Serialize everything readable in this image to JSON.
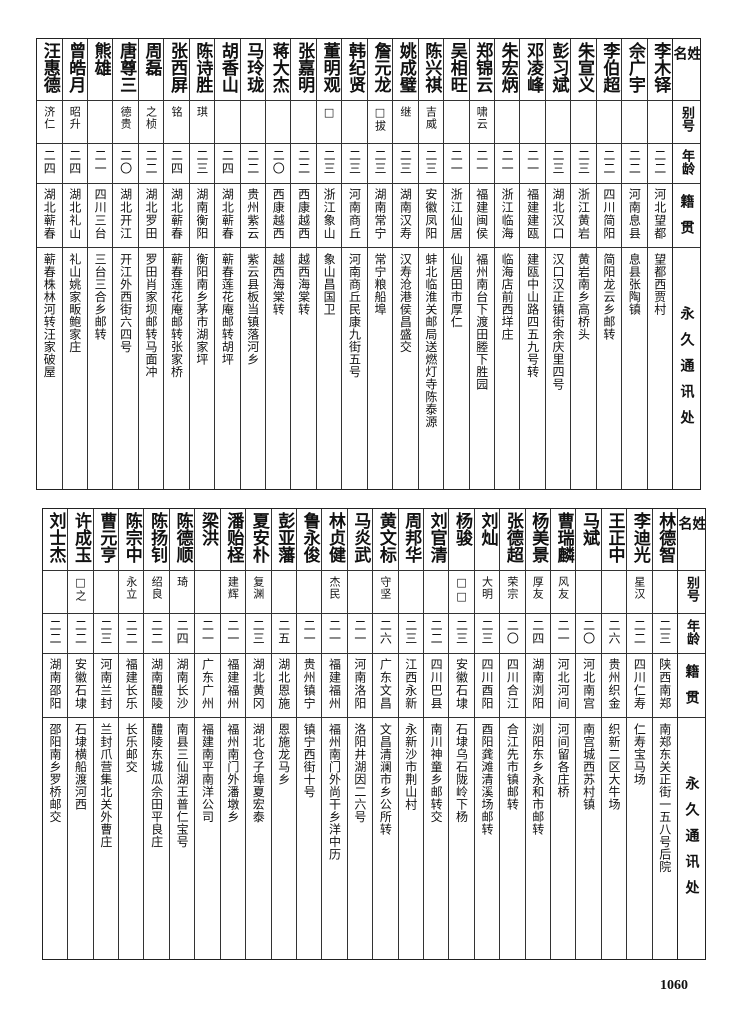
{
  "headers": {
    "name": "姓名",
    "alias": "别号",
    "age": "年龄",
    "origin": "籍贯",
    "address": "永久通讯处"
  },
  "tables": [
    {
      "rows": [
        {
          "name": "李木铎",
          "alias": "",
          "age": "二二",
          "origin": "河北望都",
          "address": "望都西贾村"
        },
        {
          "name": "佘广宇",
          "alias": "",
          "age": "二二",
          "origin": "河南息县",
          "address": "息县张陶镇"
        },
        {
          "name": "李伯超",
          "alias": "",
          "age": "二二",
          "origin": "四川简阳",
          "address": "简阳龙云乡邮转"
        },
        {
          "name": "朱宣义",
          "alias": "",
          "age": "二三",
          "origin": "浙江黄岩",
          "address": "黄岩南乡高桥头"
        },
        {
          "name": "彭习斌",
          "alias": "",
          "age": "二三",
          "origin": "湖北汉口",
          "address": "汉口汉正镇街余庆里四号"
        },
        {
          "name": "邓凌峰",
          "alias": "",
          "age": "二一",
          "origin": "福建建瓯",
          "address": "建瓯中山路四五九号转"
        },
        {
          "name": "朱宏炳",
          "alias": "",
          "age": "二一",
          "origin": "浙江临海",
          "address": "临海店前西垟庄"
        },
        {
          "name": "郑锦云",
          "alias": "啸云",
          "age": "二一",
          "origin": "福建闽侯",
          "address": "福州南台下渡田塍下胜园"
        },
        {
          "name": "吴相旺",
          "alias": "",
          "age": "二一",
          "origin": "浙江仙居",
          "address": "仙居田市厚仁"
        },
        {
          "name": "陈兴祺",
          "alias": "吉威",
          "age": "二三",
          "origin": "安徽凤阳",
          "address": "蚌北临淮关邮局送燃灯寺陈泰源"
        },
        {
          "name": "姚成璧",
          "alias": "继",
          "age": "二三",
          "origin": "湖南汉寿",
          "address": "汉寿沧港侯昌盛交"
        },
        {
          "name": "詹元龙",
          "alias": "□拔",
          "age": "二三",
          "origin": "湖南常宁",
          "address": "常宁粮船埠"
        },
        {
          "name": "韩纪贤",
          "alias": "",
          "age": "二三",
          "origin": "河南商丘",
          "address": "河南商丘民康九街五号"
        },
        {
          "name": "董明观",
          "alias": "□",
          "age": "二三",
          "origin": "浙江象山",
          "address": "象山昌国卫"
        },
        {
          "name": "张嘉明",
          "alias": "",
          "age": "二二",
          "origin": "西康越西",
          "address": "越西海棠转"
        },
        {
          "name": "蒋大杰",
          "alias": "",
          "age": "二〇",
          "origin": "西康越西",
          "address": "越西海棠转"
        },
        {
          "name": "马玲珑",
          "alias": "",
          "age": "二二",
          "origin": "贵州紫云",
          "address": "紫云县板当镇落河乡"
        },
        {
          "name": "胡香山",
          "alias": "",
          "age": "二四",
          "origin": "湖北蕲春",
          "address": "蕲春莲花庵邮转胡坪"
        },
        {
          "name": "陈诗胜",
          "alias": "琪",
          "age": "二三",
          "origin": "湖南衡阳",
          "address": "衡阳南乡茅市湖家坪"
        },
        {
          "name": "张西屏",
          "alias": "铭",
          "age": "二四",
          "origin": "湖北蕲春",
          "address": "蕲春莲花庵邮转张家桥"
        },
        {
          "name": "周磊",
          "alias": "之桢",
          "age": "二二",
          "origin": "湖北罗田",
          "address": "罗田肖家坝邮转马面冲"
        },
        {
          "name": "唐尊三",
          "alias": "德贵",
          "age": "二〇",
          "origin": "湖北开江",
          "address": "开江外西街六四号"
        },
        {
          "name": "熊雄",
          "alias": "",
          "age": "二一",
          "origin": "四川三台",
          "address": "三台三合乡邮转"
        },
        {
          "name": "曾皓月",
          "alias": "昭升",
          "age": "二四",
          "origin": "湖北礼山",
          "address": "礼山姚家畈鲍家庄"
        },
        {
          "name": "汪惠德",
          "alias": "济仁",
          "age": "二四",
          "origin": "湖北蕲春",
          "address": "蕲春株林河转汪家破屋"
        }
      ]
    },
    {
      "rows": [
        {
          "name": "林德智",
          "alias": "",
          "age": "二三",
          "origin": "陕西南郑",
          "address": "南郑东关正街一五八号后院"
        },
        {
          "name": "李迪光",
          "alias": "星汉",
          "age": "二二",
          "origin": "四川仁寿",
          "address": "仁寿宝马场"
        },
        {
          "name": "王正中",
          "alias": "",
          "age": "二六",
          "origin": "贵州织金",
          "address": "织新二区大牛场"
        },
        {
          "name": "马斌",
          "alias": "",
          "age": "二〇",
          "origin": "河北南宫",
          "address": "南宫城西苏村镇"
        },
        {
          "name": "曹瑞麟",
          "alias": "风友",
          "age": "二一",
          "origin": "河北河间",
          "address": "河间留各庄桥"
        },
        {
          "name": "杨美景",
          "alias": "厚友",
          "age": "二四",
          "origin": "湖南浏阳",
          "address": "浏阳东乡永和市邮转"
        },
        {
          "name": "张德超",
          "alias": "荣宗",
          "age": "二〇",
          "origin": "四川合江",
          "address": "合江先市镇邮转"
        },
        {
          "name": "刘灿",
          "alias": "大明",
          "age": "二三",
          "origin": "四川酉阳",
          "address": "酉阳龚滩清溪场邮转"
        },
        {
          "name": "杨骏",
          "alias": "□□",
          "age": "二三",
          "origin": "安徽石埭",
          "address": "石埭乌石陇岭下杨"
        },
        {
          "name": "刘官清",
          "alias": "",
          "age": "二二",
          "origin": "四川巴县",
          "address": "南川神童乡邮转交"
        },
        {
          "name": "周邦华",
          "alias": "",
          "age": "二三",
          "origin": "江西永新",
          "address": "永新沙市荆山村"
        },
        {
          "name": "黄文标",
          "alias": "守坚",
          "age": "二六",
          "origin": "广东文昌",
          "address": "文昌清澜市乡公所转"
        },
        {
          "name": "马炎武",
          "alias": "",
          "age": "二一",
          "origin": "河南洛阳",
          "address": "洛阳井湖因二六号"
        },
        {
          "name": "林贞健",
          "alias": "杰民",
          "age": "二一",
          "origin": "福建福州",
          "address": "福州南门外尚干乡洋中历"
        },
        {
          "name": "鲁永俊",
          "alias": "",
          "age": "二一",
          "origin": "贵州镇宁",
          "address": "镇宁西街十号"
        },
        {
          "name": "彭亚藩",
          "alias": "",
          "age": "二五",
          "origin": "湖北恩施",
          "address": "恩施龙马乡"
        },
        {
          "name": "夏安朴",
          "alias": "复渊",
          "age": "二三",
          "origin": "湖北黄冈",
          "address": "湖北仓子埠夏宏泰"
        },
        {
          "name": "潘贻柽",
          "alias": "建辉",
          "age": "二一",
          "origin": "福建福州",
          "address": "福州南门外潘墩乡"
        },
        {
          "name": "梁洪",
          "alias": "",
          "age": "二一",
          "origin": "广东广州",
          "address": "福建南平南洋公司"
        },
        {
          "name": "陈德顺",
          "alias": "琦",
          "age": "二四",
          "origin": "湖南长沙",
          "address": "南县三仙湖王普仁宝号"
        },
        {
          "name": "陈扬钊",
          "alias": "绍良",
          "age": "二二",
          "origin": "湖南醴陵",
          "address": "醴陵东城瓜佘田平良庄"
        },
        {
          "name": "陈宗中",
          "alias": "永立",
          "age": "二二",
          "origin": "福建长乐",
          "address": "长乐邮交"
        },
        {
          "name": "曹元亨",
          "alias": "",
          "age": "二三",
          "origin": "河南兰封",
          "address": "兰封爪营集北关外曹庄"
        },
        {
          "name": "许成玉",
          "alias": "□之",
          "age": "二二",
          "origin": "安徽石埭",
          "address": "石埭横船渡河西"
        },
        {
          "name": "刘士杰",
          "alias": "",
          "age": "二二",
          "origin": "湖南邵阳",
          "address": "邵阳南乡罗桥邮交"
        }
      ]
    }
  ],
  "page_number": "1060"
}
